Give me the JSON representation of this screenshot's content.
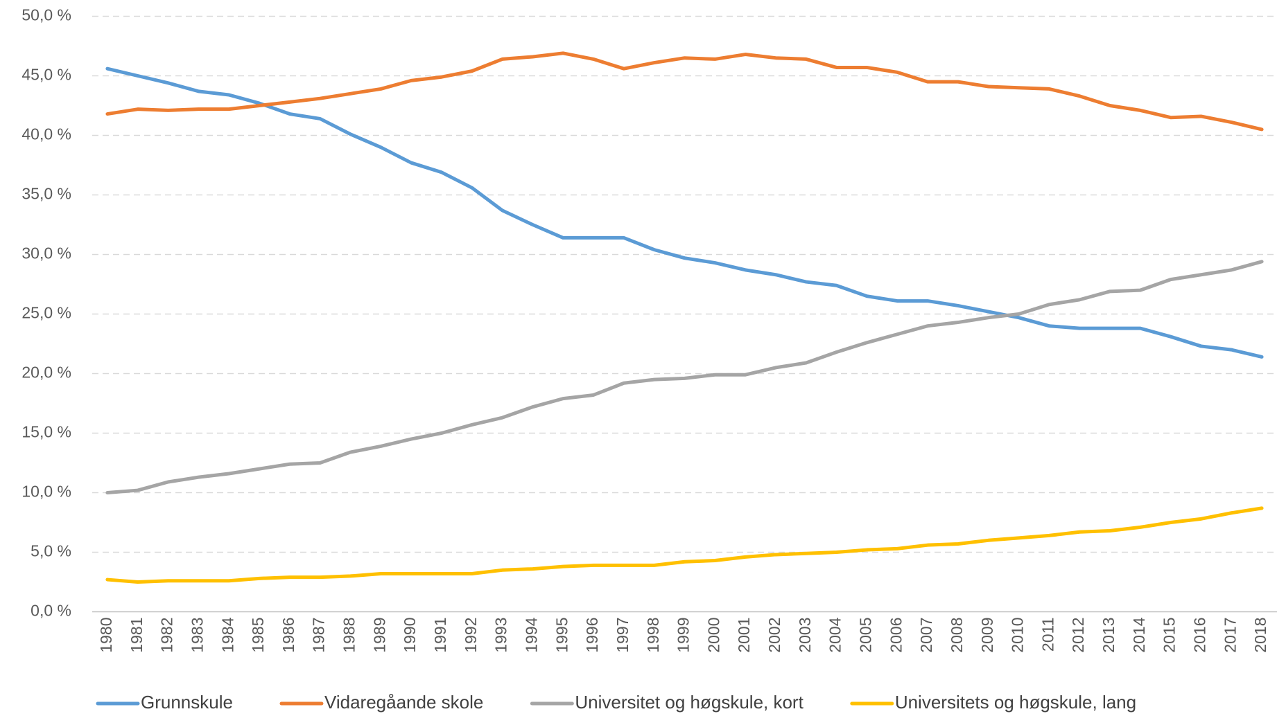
{
  "chart_data": {
    "type": "line",
    "categories": [
      "1980",
      "1981",
      "1982",
      "1983",
      "1984",
      "1985",
      "1986",
      "1987",
      "1988",
      "1989",
      "1990",
      "1991",
      "1992",
      "1993",
      "1994",
      "1995",
      "1996",
      "1997",
      "1998",
      "1999",
      "2000",
      "2001",
      "2002",
      "2003",
      "2004",
      "2005",
      "2006",
      "2007",
      "2008",
      "2009",
      "2010",
      "2011",
      "2012",
      "2013",
      "2014",
      "2015",
      "2016",
      "2017",
      "2018"
    ],
    "series": [
      {
        "name": "Grunnskule",
        "color": "#5b9bd5",
        "values": [
          45.6,
          45.0,
          44.4,
          43.7,
          43.4,
          42.7,
          41.8,
          41.4,
          40.1,
          39.0,
          37.7,
          36.9,
          35.6,
          33.7,
          32.5,
          31.4,
          31.4,
          31.4,
          30.4,
          29.7,
          29.3,
          28.7,
          28.3,
          27.7,
          27.4,
          26.5,
          26.1,
          26.1,
          25.7,
          25.2,
          24.7,
          24.0,
          23.8,
          23.8,
          23.8,
          23.1,
          22.3,
          22.0,
          21.4
        ]
      },
      {
        "name": "Vidaregåande skole",
        "color": "#ed7d31",
        "values": [
          41.8,
          42.2,
          42.1,
          42.2,
          42.2,
          42.5,
          42.8,
          43.1,
          43.5,
          43.9,
          44.6,
          44.9,
          45.4,
          46.4,
          46.6,
          46.9,
          46.4,
          45.6,
          46.1,
          46.5,
          46.4,
          46.8,
          46.5,
          46.4,
          45.7,
          45.7,
          45.3,
          44.5,
          44.5,
          44.1,
          44.0,
          43.9,
          43.3,
          42.5,
          42.1,
          41.5,
          41.6,
          41.1,
          40.5
        ]
      },
      {
        "name": "Universitet og høgskule, kort",
        "color": "#a5a5a5",
        "values": [
          10.0,
          10.2,
          10.9,
          11.3,
          11.6,
          12.0,
          12.4,
          12.5,
          13.4,
          13.9,
          14.5,
          15.0,
          15.7,
          16.3,
          17.2,
          17.9,
          18.2,
          19.2,
          19.5,
          19.6,
          19.9,
          19.9,
          20.5,
          20.9,
          21.8,
          22.6,
          23.3,
          24.0,
          24.3,
          24.7,
          25.0,
          25.8,
          26.2,
          26.9,
          27.0,
          27.9,
          28.3,
          28.7,
          29.4
        ]
      },
      {
        "name": "Universitets og høgskule, lang",
        "color": "#ffc000",
        "values": [
          2.7,
          2.5,
          2.6,
          2.6,
          2.6,
          2.8,
          2.9,
          2.9,
          3.0,
          3.2,
          3.2,
          3.2,
          3.2,
          3.5,
          3.6,
          3.8,
          3.9,
          3.9,
          3.9,
          4.2,
          4.3,
          4.6,
          4.8,
          4.9,
          5.0,
          5.2,
          5.3,
          5.6,
          5.7,
          6.0,
          6.2,
          6.4,
          6.7,
          6.8,
          7.1,
          7.5,
          7.8,
          8.3,
          8.7
        ]
      }
    ],
    "ylim": [
      0,
      50
    ],
    "yticks": [
      {
        "value": 0,
        "label": "0,0 %"
      },
      {
        "value": 5,
        "label": "5,0 %"
      },
      {
        "value": 10,
        "label": "10,0 %"
      },
      {
        "value": 15,
        "label": "15,0 %"
      },
      {
        "value": 20,
        "label": "20,0 %"
      },
      {
        "value": 25,
        "label": "25,0 %"
      },
      {
        "value": 30,
        "label": "30,0 %"
      },
      {
        "value": 35,
        "label": "35,0 %"
      },
      {
        "value": 40,
        "label": "40,0 %"
      },
      {
        "value": 45,
        "label": "45,0 %"
      },
      {
        "value": 50,
        "label": "50,0 %"
      }
    ],
    "grid": true,
    "legend": "bottom"
  }
}
